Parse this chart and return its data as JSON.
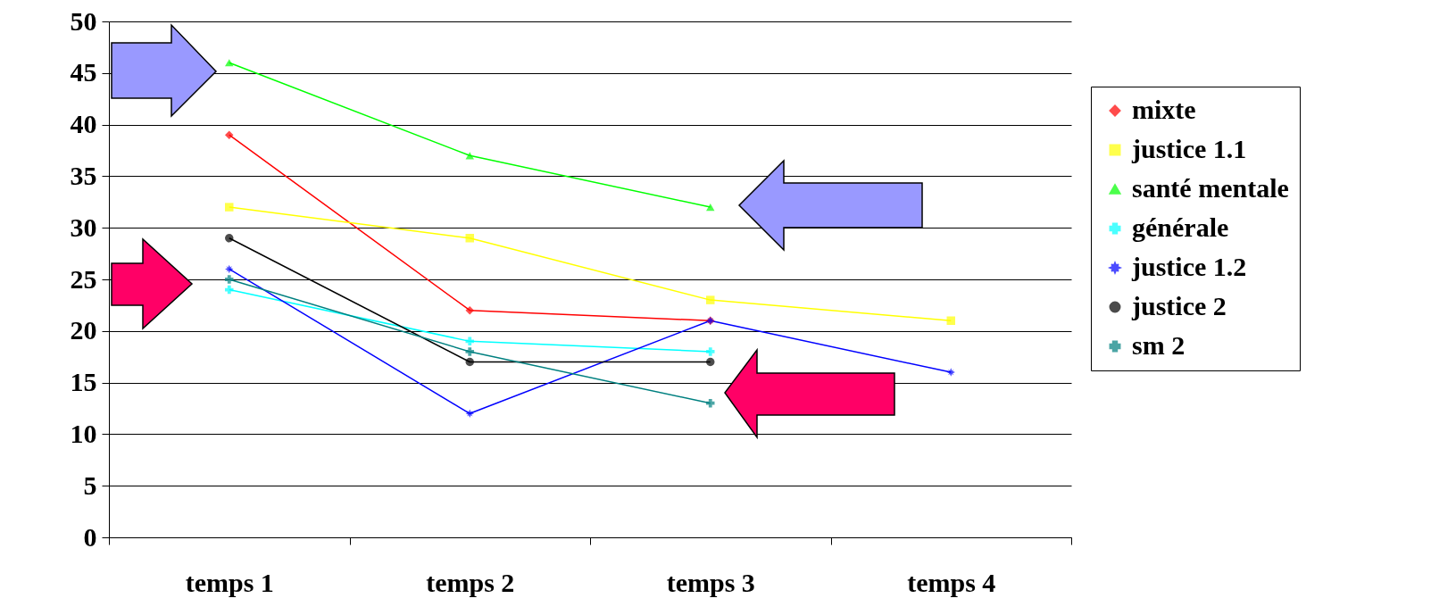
{
  "chart_data": {
    "type": "line",
    "categories": [
      "temps 1",
      "temps 2",
      "temps 3",
      "temps 4"
    ],
    "ylim": [
      0,
      50
    ],
    "yticks": [
      0,
      5,
      10,
      15,
      20,
      25,
      30,
      35,
      40,
      45,
      50
    ],
    "grid": "y",
    "legend": "right",
    "series": [
      {
        "name": "mixte",
        "color": "#ff0000",
        "marker": "diamond",
        "values": [
          39,
          22,
          21,
          null
        ]
      },
      {
        "name": "justice 1.1",
        "color": "#ffff00",
        "marker": "square",
        "values": [
          32,
          29,
          23,
          21
        ]
      },
      {
        "name": "santé mentale",
        "color": "#00ff00",
        "marker": "triangle",
        "values": [
          46,
          37,
          32,
          null
        ]
      },
      {
        "name": "générale",
        "color": "#00ffff",
        "marker": "cross",
        "values": [
          24,
          19,
          18,
          null
        ]
      },
      {
        "name": "justice 1.2",
        "color": "#0000ff",
        "marker": "star",
        "values": [
          26,
          12,
          21,
          16
        ]
      },
      {
        "name": "justice 2",
        "color": "#000000",
        "marker": "circle",
        "values": [
          29,
          17,
          17,
          null
        ]
      },
      {
        "name": "sm 2",
        "color": "#008080",
        "marker": "cross",
        "values": [
          25,
          18,
          13,
          null
        ]
      }
    ]
  }
}
